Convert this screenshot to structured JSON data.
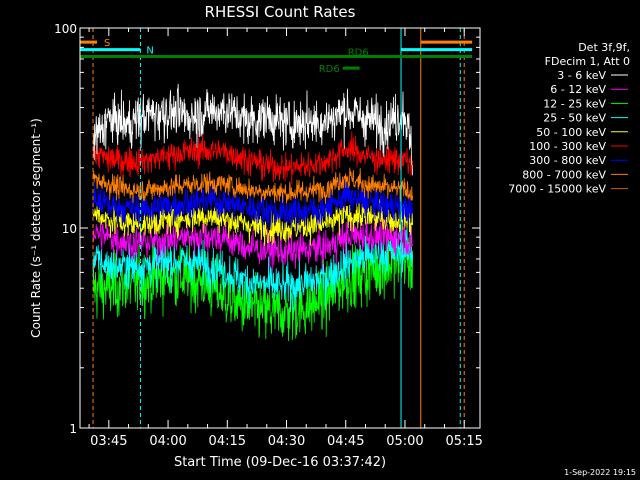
{
  "chart_data": {
    "type": "line",
    "title": "RHESSI Count Rates",
    "xlabel": "Start Time (09-Dec-16 03:37:42)",
    "ylabel": "Count Rate (s⁻¹ detector segment⁻¹)",
    "yscale": "log",
    "ylim": [
      1,
      100
    ],
    "xlim": [
      "03:37:42",
      "05:19:00"
    ],
    "x_ticks": [
      "03:45",
      "04:00",
      "04:15",
      "04:30",
      "04:45",
      "05:00",
      "05:15"
    ],
    "y_ticks": [
      "1",
      "10",
      "100"
    ],
    "data_range": [
      "03:41",
      "05:02"
    ],
    "legend": {
      "position": "top-right",
      "header_lines": [
        "Det 3f,9f,",
        "FDecim 1, Att 0"
      ]
    },
    "series": [
      {
        "name": "3 - 6 keV",
        "color": "#ffffff",
        "x": [
          "03:41",
          "03:45",
          "03:50",
          "03:55",
          "04:00",
          "04:05",
          "04:10",
          "04:15",
          "04:20",
          "04:25",
          "04:30",
          "04:35",
          "04:40",
          "04:45",
          "04:50",
          "04:55",
          "05:00",
          "05:02"
        ],
        "values": [
          27,
          35,
          33,
          37,
          38,
          36,
          38,
          39,
          34,
          36,
          33,
          34,
          34,
          39,
          35,
          33,
          38,
          22
        ]
      },
      {
        "name": "6 - 12 keV",
        "color": "#ff00ff",
        "x": [
          "03:41",
          "03:45",
          "03:50",
          "03:55",
          "04:00",
          "04:05",
          "04:10",
          "04:15",
          "04:20",
          "04:25",
          "04:30",
          "04:35",
          "04:40",
          "04:45",
          "04:50",
          "04:55",
          "05:00",
          "05:02"
        ],
        "values": [
          9.5,
          9,
          8.5,
          8.5,
          8.8,
          9,
          9.2,
          8.8,
          8,
          7.8,
          7.6,
          7.8,
          8,
          9,
          9.3,
          9,
          9,
          8
        ]
      },
      {
        "name": "12 - 25 keV",
        "color": "#00ff00",
        "x": [
          "03:41",
          "03:45",
          "03:50",
          "03:55",
          "04:00",
          "04:05",
          "04:10",
          "04:15",
          "04:20",
          "04:25",
          "04:30",
          "04:35",
          "04:40",
          "04:45",
          "04:50",
          "04:55",
          "05:00",
          "05:02"
        ],
        "values": [
          5,
          5,
          5.2,
          5.4,
          5.8,
          5.6,
          5.2,
          4.5,
          4,
          3.8,
          3.8,
          4,
          4.5,
          5.5,
          6,
          6.5,
          7,
          6.5
        ]
      },
      {
        "name": "25 - 50 keV",
        "color": "#00ffff",
        "x": [
          "03:41",
          "03:45",
          "03:50",
          "03:55",
          "04:00",
          "04:05",
          "04:10",
          "04:15",
          "04:20",
          "04:25",
          "04:30",
          "04:35",
          "04:40",
          "04:45",
          "04:50",
          "04:55",
          "05:00",
          "05:02"
        ],
        "values": [
          7,
          6.5,
          6.4,
          6.5,
          6.8,
          6.8,
          6.6,
          6,
          5.4,
          5.2,
          5.1,
          5.3,
          5.7,
          6.6,
          7.2,
          7.5,
          7.8,
          7.5
        ]
      },
      {
        "name": "50 - 100 keV",
        "color": "#ffff00",
        "x": [
          "03:41",
          "03:45",
          "03:50",
          "03:55",
          "04:00",
          "04:05",
          "04:10",
          "04:15",
          "04:20",
          "04:25",
          "04:30",
          "04:35",
          "04:40",
          "04:45",
          "04:50",
          "04:55",
          "05:00",
          "05:02"
        ],
        "values": [
          12,
          11,
          10.5,
          10.5,
          11,
          11.2,
          11.5,
          11,
          10.4,
          10,
          10,
          10.2,
          10.5,
          11.5,
          11.5,
          11,
          11,
          10.5
        ]
      },
      {
        "name": "100 - 300 keV",
        "color": "#ff0000",
        "x": [
          "03:41",
          "03:45",
          "03:50",
          "03:55",
          "04:00",
          "04:05",
          "04:10",
          "04:15",
          "04:20",
          "04:25",
          "04:30",
          "04:35",
          "04:40",
          "04:45",
          "04:50",
          "04:55",
          "05:00",
          "05:02"
        ],
        "values": [
          24,
          22,
          21.5,
          22,
          23,
          24,
          24.5,
          24,
          22,
          20.5,
          20,
          20.5,
          21.5,
          25,
          23,
          22,
          22,
          20
        ]
      },
      {
        "name": "300 - 800 keV",
        "color": "#0000ff",
        "x": [
          "03:41",
          "03:45",
          "03:50",
          "03:55",
          "04:00",
          "04:05",
          "04:10",
          "04:15",
          "04:20",
          "04:25",
          "04:30",
          "04:35",
          "04:40",
          "04:45",
          "04:50",
          "04:55",
          "05:00",
          "05:02"
        ],
        "values": [
          14,
          13,
          12.5,
          12.5,
          13,
          13.3,
          13.8,
          13.4,
          12.6,
          12.2,
          12,
          12.2,
          12.6,
          14.5,
          13.5,
          13,
          12.5,
          12
        ]
      },
      {
        "name": "800 - 7000 keV",
        "color": "#ff8000",
        "x": [
          "03:41",
          "03:45",
          "03:50",
          "03:55",
          "04:00",
          "04:05",
          "04:10",
          "04:15",
          "04:20",
          "04:25",
          "04:30",
          "04:35",
          "04:40",
          "04:45",
          "04:50",
          "04:55",
          "05:00",
          "05:02"
        ],
        "values": [
          18,
          16.5,
          15.5,
          15.5,
          16,
          16.4,
          16.8,
          16.5,
          15.6,
          15.2,
          15,
          15.2,
          15.8,
          18,
          16.5,
          15.8,
          15.5,
          15
        ]
      },
      {
        "name": "7000 - 15000 keV",
        "color": "#c86400",
        "x": [],
        "values": []
      }
    ],
    "annotations": {
      "attenuator_bar": {
        "label": "S",
        "color": "#ff8000",
        "value": 85
      },
      "night_bar": {
        "label": "N",
        "color": "#00ffff",
        "value": 78
      },
      "saa_bars": [
        {
          "label": "RD6",
          "color": "#008000",
          "value": 72
        },
        {
          "label": "RD6",
          "color": "#008000",
          "value": 63
        }
      ],
      "vertical_lines": [
        {
          "time": "03:41",
          "color": "#ff8000",
          "style": "dashed"
        },
        {
          "time": "03:53",
          "color": "#00ffff",
          "style": "dashed"
        },
        {
          "time": "04:59",
          "color": "#00ffff",
          "style": "solid"
        },
        {
          "time": "05:04",
          "color": "#ff8000",
          "style": "solid"
        },
        {
          "time": "05:14",
          "color": "#00ffff",
          "style": "dashed"
        },
        {
          "time": "05:15",
          "color": "#ff8000",
          "style": "dashed"
        }
      ]
    }
  },
  "footer": {
    "timestamp": "1-Sep-2022 19:15"
  }
}
